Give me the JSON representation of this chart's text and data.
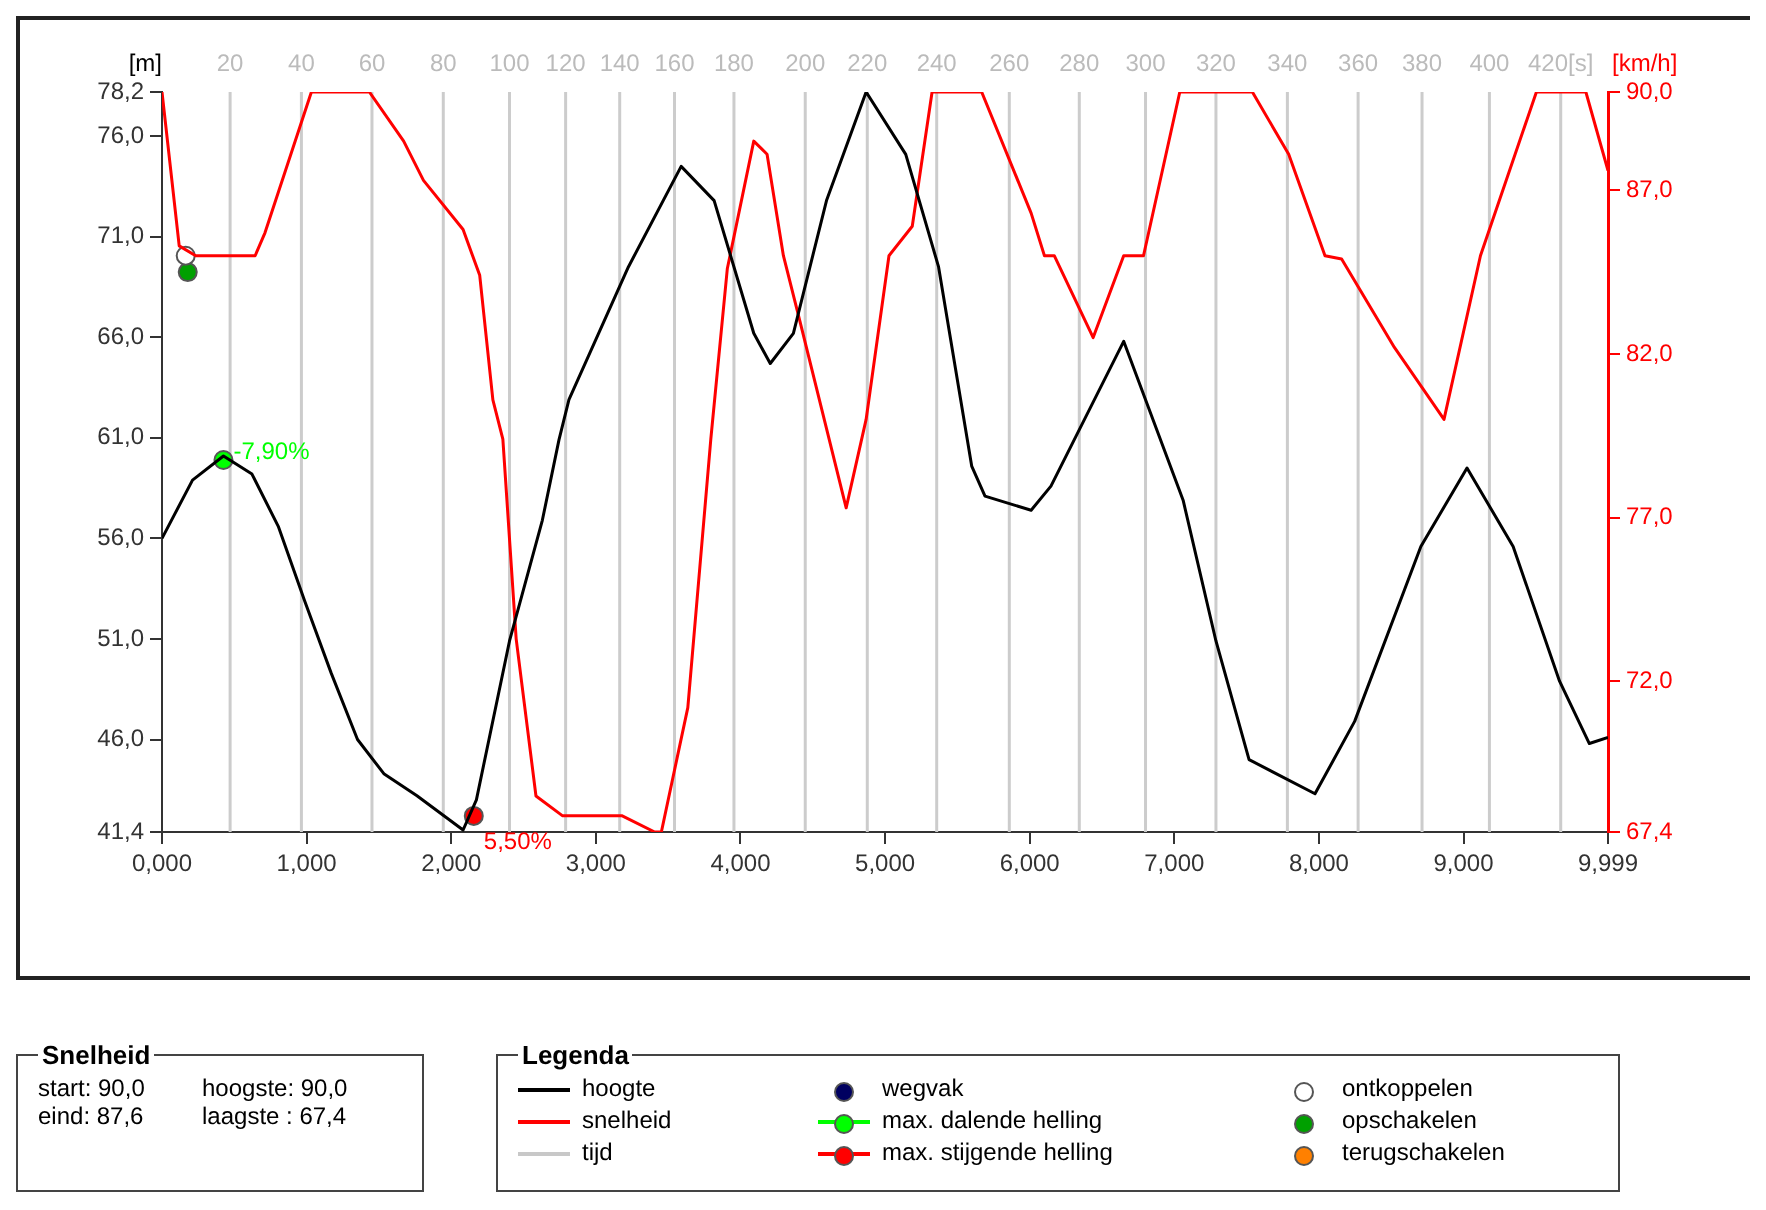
{
  "chart_data": {
    "type": "line",
    "ylabel": "[m]",
    "y2label": "[km/h]",
    "xlim": [
      0,
      9.999
    ],
    "xticks": [
      {
        "value": 0,
        "label": "0,000"
      },
      {
        "value": 1,
        "label": "1,000"
      },
      {
        "value": 2,
        "label": "2,000"
      },
      {
        "value": 3,
        "label": "3,000"
      },
      {
        "value": 4,
        "label": "4,000"
      },
      {
        "value": 5,
        "label": "5,000"
      },
      {
        "value": 6,
        "label": "6,000"
      },
      {
        "value": 7,
        "label": "7,000"
      },
      {
        "value": 8,
        "label": "8,000"
      },
      {
        "value": 9,
        "label": "9,000"
      },
      {
        "value": 9.999,
        "label": "9,999"
      }
    ],
    "ylim": [
      41.4,
      78.2
    ],
    "yticks": [
      {
        "value": 41.4,
        "label": "41,4"
      },
      {
        "value": 46,
        "label": "46,0"
      },
      {
        "value": 51,
        "label": "51,0"
      },
      {
        "value": 56,
        "label": "56,0"
      },
      {
        "value": 61,
        "label": "61,0"
      },
      {
        "value": 66,
        "label": "66,0"
      },
      {
        "value": 71,
        "label": "71,0"
      },
      {
        "value": 76,
        "label": "76,0"
      },
      {
        "value": 78.2,
        "label": "78,2"
      }
    ],
    "y2lim": [
      67.4,
      90
    ],
    "y2ticks": [
      {
        "value": 67.4,
        "label": "67,4"
      },
      {
        "value": 72,
        "label": "72,0"
      },
      {
        "value": 77,
        "label": "77,0"
      },
      {
        "value": 82,
        "label": "82,0"
      },
      {
        "value": 87,
        "label": "87,0"
      },
      {
        "value": 90,
        "label": "90,0"
      }
    ],
    "ref_lines": [
      {
        "axis": "x",
        "value": 0.471,
        "color": "#cccccc"
      },
      {
        "axis": "x",
        "value": 0.964,
        "color": "#cccccc"
      },
      {
        "axis": "x",
        "value": 1.452,
        "color": "#cccccc"
      },
      {
        "axis": "x",
        "value": 1.945,
        "color": "#cccccc"
      },
      {
        "axis": "x",
        "value": 2.403,
        "color": "#cccccc"
      },
      {
        "axis": "x",
        "value": 2.791,
        "color": "#cccccc"
      },
      {
        "axis": "x",
        "value": 3.165,
        "color": "#cccccc"
      },
      {
        "axis": "x",
        "value": 3.544,
        "color": "#cccccc"
      },
      {
        "axis": "x",
        "value": 3.955,
        "color": "#cccccc"
      },
      {
        "axis": "x",
        "value": 4.448,
        "color": "#cccccc"
      },
      {
        "axis": "x",
        "value": 4.877,
        "color": "#cccccc"
      },
      {
        "axis": "x",
        "value": 5.357,
        "color": "#cccccc"
      },
      {
        "axis": "x",
        "value": 5.859,
        "color": "#cccccc"
      },
      {
        "axis": "x",
        "value": 6.343,
        "color": "#cccccc"
      },
      {
        "axis": "x",
        "value": 6.801,
        "color": "#cccccc"
      },
      {
        "axis": "x",
        "value": 7.288,
        "color": "#cccccc"
      },
      {
        "axis": "x",
        "value": 7.782,
        "color": "#cccccc"
      },
      {
        "axis": "x",
        "value": 8.271,
        "color": "#cccccc"
      },
      {
        "axis": "x",
        "value": 8.713,
        "color": "#cccccc"
      },
      {
        "axis": "x",
        "value": 9.179,
        "color": "#cccccc"
      },
      {
        "axis": "x",
        "value": 9.672,
        "color": "#cccccc"
      }
    ],
    "legend": "bottom",
    "legend_title": "Legenda",
    "series": [
      {
        "name": "hoogte",
        "color": "#000000",
        "x": [
          0,
          0.211,
          0.425,
          0.622,
          0.804,
          0.986,
          1.17,
          1.352,
          1.534,
          1.763,
          2.082,
          2.174,
          2.403,
          2.63,
          2.745,
          2.814,
          3.225,
          3.59,
          3.818,
          4.092,
          4.206,
          4.366,
          4.595,
          4.869,
          5.143,
          5.37,
          5.599,
          5.691,
          6.01,
          6.147,
          6.65,
          7.061,
          7.288,
          7.517,
          7.973,
          8.247,
          8.705,
          9.024,
          9.343,
          9.664,
          9.87,
          9.999
        ],
        "values": [
          56.0,
          58.9,
          60.1,
          59.2,
          56.6,
          52.9,
          49.3,
          46.0,
          44.3,
          43.2,
          41.5,
          43.0,
          50.9,
          56.9,
          60.9,
          62.9,
          69.5,
          74.5,
          72.8,
          66.2,
          64.7,
          66.2,
          72.8,
          78.2,
          75.1,
          69.5,
          59.6,
          58.1,
          57.4,
          58.6,
          65.8,
          57.9,
          50.9,
          45.0,
          43.3,
          46.9,
          55.6,
          59.5,
          55.6,
          48.9,
          45.8,
          46.1
        ]
      },
      {
        "name": "snelheid",
        "axis": "y2",
        "color": "#ff0000",
        "x": [
          0,
          0.119,
          0.233,
          0.644,
          0.712,
          1.033,
          1.434,
          1.671,
          1.808,
          2.082,
          2.197,
          2.288,
          2.357,
          2.449,
          2.586,
          2.768,
          3.179,
          3.407,
          3.453,
          3.636,
          3.795,
          3.909,
          4.092,
          4.184,
          4.297,
          4.411,
          4.731,
          4.869,
          5.027,
          5.188,
          5.325,
          5.668,
          6.01,
          6.102,
          6.17,
          6.439,
          6.65,
          6.787,
          7.038,
          7.54,
          7.791,
          8.042,
          8.157,
          8.522,
          8.865,
          9.117,
          9.504,
          9.846,
          9.999
        ],
        "values": [
          90.0,
          85.3,
          85.0,
          85.0,
          85.7,
          90.0,
          90.0,
          88.5,
          87.3,
          85.8,
          84.4,
          80.6,
          79.4,
          73.3,
          68.5,
          67.9,
          67.9,
          67.4,
          67.4,
          71.2,
          79.4,
          84.6,
          88.5,
          88.1,
          85.0,
          83.0,
          77.3,
          80.0,
          85.0,
          85.9,
          90.0,
          90.0,
          86.3,
          85.0,
          85.0,
          82.5,
          85.0,
          85.0,
          90.0,
          90.0,
          88.1,
          85.0,
          84.9,
          82.2,
          80.0,
          85.0,
          90.0,
          90.0,
          87.6
        ]
      },
      {
        "name": "tijd",
        "color": "#c8c8c8"
      },
      {
        "name": "wegvak",
        "type": "scatter",
        "marker": "circle",
        "color": "#000060"
      },
      {
        "name": "max. dalende helling",
        "marker": "circle",
        "color": "#00ff00",
        "x": [
          0.425
        ],
        "values": [
          59.9
        ]
      },
      {
        "name": "max. stijgende helling",
        "marker": "circle",
        "color": "#ff0000",
        "x": [
          2.156
        ],
        "values": [
          42.2
        ]
      },
      {
        "name": "ontkoppelen",
        "type": "scatter",
        "marker": "circle",
        "axis": "y2",
        "color": "#ffffff",
        "x": [
          0.164
        ],
        "values": [
          85.0
        ]
      },
      {
        "name": "opschakelen",
        "type": "scatter",
        "marker": "circle",
        "axis": "y2",
        "color": "#00a000",
        "x": [
          0.178
        ],
        "values": [
          84.5
        ]
      },
      {
        "name": "terugschakelen",
        "type": "scatter",
        "marker": "circle",
        "color": "#ff8000"
      }
    ],
    "annotations": [
      "Snelheid",
      "start: 90,0",
      "hoogste: 90,0",
      "eind: 87,6",
      "laagste : 67,4",
      {
        "text": "-7,90%",
        "x": 0.425,
        "y": 59.9
      },
      {
        "text": "5,50%",
        "x": 2.156,
        "y": 42.2
      },
      "20",
      "40",
      "60",
      "80",
      "100",
      "120",
      "140",
      "160",
      "180",
      "200",
      "220",
      "240",
      "260",
      "280",
      "300",
      "320",
      "340",
      "360",
      "380",
      "400",
      "420[s]"
    ]
  }
}
